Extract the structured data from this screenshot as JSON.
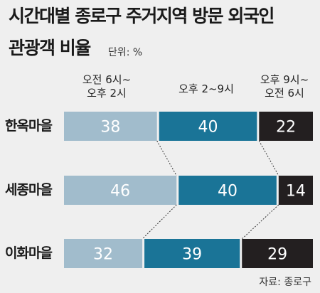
{
  "title_line1": "시간대별 종로구 주거지역 방문 외국인",
  "title_line2": "관광객 비율",
  "unit_label": "단위: %",
  "source": "자료: 종로구",
  "colors": {
    "background": "#efefef",
    "segment_1": "#a1bccc",
    "segment_2": "#1a7497",
    "segment_3": "#231f20",
    "connector": "#333333",
    "bar_text": "#ffffff"
  },
  "chart_data": {
    "type": "bar",
    "orientation": "horizontal-stacked-100",
    "title": "시간대별 종로구 주거지역 방문 외국인 관광객 비율",
    "unit": "%",
    "categories": [
      "한옥마을",
      "세종마을",
      "이화마을"
    ],
    "series": [
      {
        "name": "오전 6시~ 오후 2시",
        "name_lines": [
          "오전 6시~",
          "오후 2시"
        ],
        "values": [
          38,
          46,
          32
        ]
      },
      {
        "name": "오후 2~9시",
        "name_lines": [
          "오후 2~9시"
        ],
        "values": [
          40,
          40,
          39
        ]
      },
      {
        "name": "오후 9시~ 오전 6시",
        "name_lines": [
          "오후 9시~",
          "오전 6시"
        ],
        "values": [
          22,
          14,
          29
        ]
      }
    ],
    "xlim": [
      0,
      100
    ],
    "grid": false,
    "legend": "top",
    "connector_lines": "dotted"
  }
}
